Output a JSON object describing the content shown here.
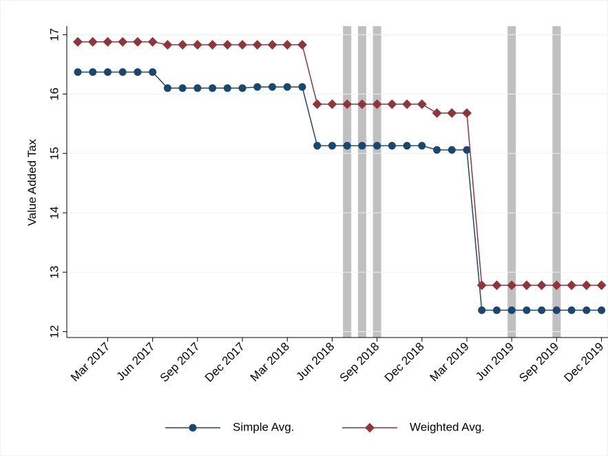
{
  "chart_data": {
    "type": "line",
    "categories": [
      null,
      null,
      "Mar 2017",
      null,
      null,
      "Jun 2017",
      null,
      null,
      "Sep 2017",
      null,
      null,
      "Dec 2017",
      null,
      null,
      "Mar 2018",
      null,
      null,
      "Jun 2018",
      null,
      null,
      "Sep 2018",
      null,
      null,
      "Dec 2018",
      null,
      null,
      "Mar 2019",
      null,
      null,
      "Jun 2019",
      null,
      null,
      "Sep 2019",
      null,
      null,
      "Dec 2019"
    ],
    "ylabel": "Value Added Tax",
    "ylim": [
      11.9,
      17.12
    ],
    "yticks": [
      12,
      13,
      14,
      15,
      16,
      17
    ],
    "grid": true,
    "shaded": [
      18,
      19,
      20,
      29,
      32
    ],
    "shade_color": "#c0c0c0",
    "legend": "bottom",
    "series": [
      {
        "name": "Simple Avg.",
        "color": "#1a476f",
        "marker": "circle",
        "values": [
          16.37,
          16.37,
          16.37,
          16.37,
          16.37,
          16.37,
          16.1,
          16.1,
          16.1,
          16.1,
          16.1,
          16.1,
          16.12,
          16.12,
          16.12,
          16.12,
          15.13,
          15.13,
          15.13,
          15.13,
          15.13,
          15.13,
          15.13,
          15.13,
          15.06,
          15.06,
          15.06,
          12.36,
          12.36,
          12.36,
          12.36,
          12.36,
          12.36,
          12.36,
          12.36,
          12.36
        ]
      },
      {
        "name": "Weighted Avg.",
        "color": "#90353b",
        "marker": "diamond",
        "values": [
          16.88,
          16.88,
          16.88,
          16.88,
          16.88,
          16.88,
          16.83,
          16.83,
          16.83,
          16.83,
          16.83,
          16.83,
          16.83,
          16.83,
          16.83,
          16.83,
          15.83,
          15.83,
          15.83,
          15.83,
          15.83,
          15.83,
          15.83,
          15.83,
          15.68,
          15.68,
          15.68,
          12.78,
          12.78,
          12.78,
          12.78,
          12.78,
          12.78,
          12.78,
          12.78,
          12.78
        ]
      }
    ]
  }
}
